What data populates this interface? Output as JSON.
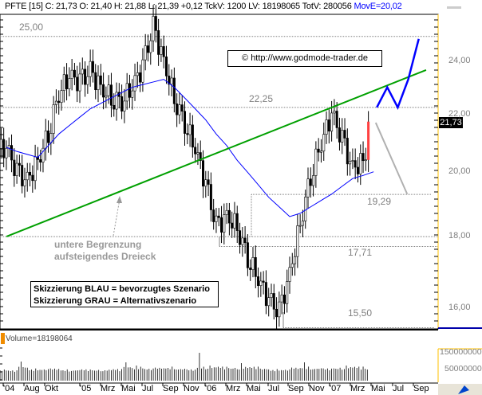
{
  "header": {
    "symbol": "PFTE [15]",
    "quote": "C: 21,73 O: 21,40 H: 21,88 L: 21,39 +0,12 TckV: 1200 LV: 18198065 TotV: 280056",
    "ma_label": "MovE=20,02"
  },
  "copyright": "© http://www.godmode-trader.de",
  "annotation": {
    "line1": "untere Begrenzung",
    "line2": "aufsteigendes Dreieck"
  },
  "legend": {
    "blue": "Skizzierung BLAU = bevorzugtes Szenario",
    "gray": "Skizzierung GRAU = Alternativszenario"
  },
  "levels": {
    "l2500": "25,00",
    "l2225": "22,25",
    "l1929": "19,29",
    "l1771": "17,71",
    "l1550": "15,50"
  },
  "current_price": "21,73",
  "volume": {
    "label": "Volume=18198064",
    "ticks": [
      "150000000",
      "50000000"
    ]
  },
  "colors": {
    "trendline": "#00a000",
    "ma": "#0000ff",
    "scenario_blue": "#0000ff",
    "scenario_gray": "#b0b0b0",
    "axis_border": "#ffc000"
  },
  "chart_data": {
    "type": "candlestick",
    "yscale": "log",
    "ylim": [
      15.3,
      26.0
    ],
    "y_ticks": [
      "24,00",
      "22,00",
      "20,00",
      "18,00",
      "16,00"
    ],
    "x_ticks": [
      "'04",
      "Aug",
      "Okt",
      "'05",
      "Mrz",
      "Mai",
      "Jul",
      "Sep",
      "Nov",
      "'06",
      "Mrz",
      "Mai",
      "Jul",
      "Sep",
      "Nov",
      "'07",
      "Mrz",
      "Mai",
      "Jul",
      "Sep"
    ],
    "months": [
      "2004-06",
      "2004-07",
      "2004-08",
      "2004-09",
      "2004-10",
      "2004-11",
      "2004-12",
      "2005-01",
      "2005-02",
      "2005-03",
      "2005-04",
      "2005-05",
      "2005-06",
      "2005-07",
      "2005-08",
      "2005-09",
      "2005-10",
      "2005-11",
      "2005-12",
      "2006-01",
      "2006-02",
      "2006-03",
      "2006-04",
      "2006-05",
      "2006-06",
      "2006-07",
      "2006-08",
      "2006-09",
      "2006-10",
      "2006-11",
      "2006-12",
      "2007-01",
      "2007-02",
      "2007-03",
      "2007-04",
      "2007-05"
    ],
    "close": [
      20.8,
      20.0,
      19.7,
      20.4,
      21.3,
      22.8,
      23.4,
      23.2,
      23.6,
      23.0,
      22.6,
      22.5,
      23.0,
      23.8,
      25.4,
      24.0,
      22.6,
      21.7,
      20.8,
      19.6,
      18.3,
      18.6,
      18.3,
      17.4,
      16.8,
      16.2,
      15.9,
      16.9,
      18.4,
      19.9,
      21.0,
      22.0,
      21.1,
      20.1,
      20.4,
      21.73
    ],
    "moving_average": [
      20.84,
      20.7,
      20.6,
      20.5,
      20.9,
      21.3,
      21.6,
      21.9,
      22.2,
      22.4,
      22.6,
      22.8,
      23.0,
      23.1,
      23.2,
      23.3,
      23.0,
      22.6,
      22.2,
      21.8,
      21.3,
      20.9,
      20.4,
      20.0,
      19.6,
      19.2,
      18.9,
      18.6,
      18.7,
      18.9,
      19.1,
      19.3,
      19.55,
      19.8,
      19.9,
      20.02
    ],
    "volume_millions": [
      40,
      35,
      95,
      45,
      42,
      45,
      40,
      38,
      40,
      38,
      40,
      42,
      90,
      70,
      45,
      50,
      55,
      45,
      40,
      150,
      70,
      55,
      50,
      85,
      55,
      45,
      42,
      40,
      50,
      90,
      48,
      45,
      50,
      70,
      55,
      45
    ],
    "horizontal_levels": [
      25.0,
      22.25,
      19.29,
      18.0,
      17.71,
      15.5
    ],
    "trendline": {
      "from": [
        "2004-06",
        18.0
      ],
      "to": [
        "2007-10",
        23.66
      ]
    },
    "scenario_blue": [
      [
        22.25,
        "2007-05"
      ],
      [
        23.0,
        "2007-06"
      ],
      [
        22.25,
        "2007-07"
      ],
      [
        23.3,
        "2007-08"
      ],
      [
        24.9,
        "2007-09"
      ]
    ],
    "scenario_gray": [
      [
        21.7,
        "2007-05"
      ],
      [
        19.3,
        "2007-08"
      ]
    ]
  }
}
